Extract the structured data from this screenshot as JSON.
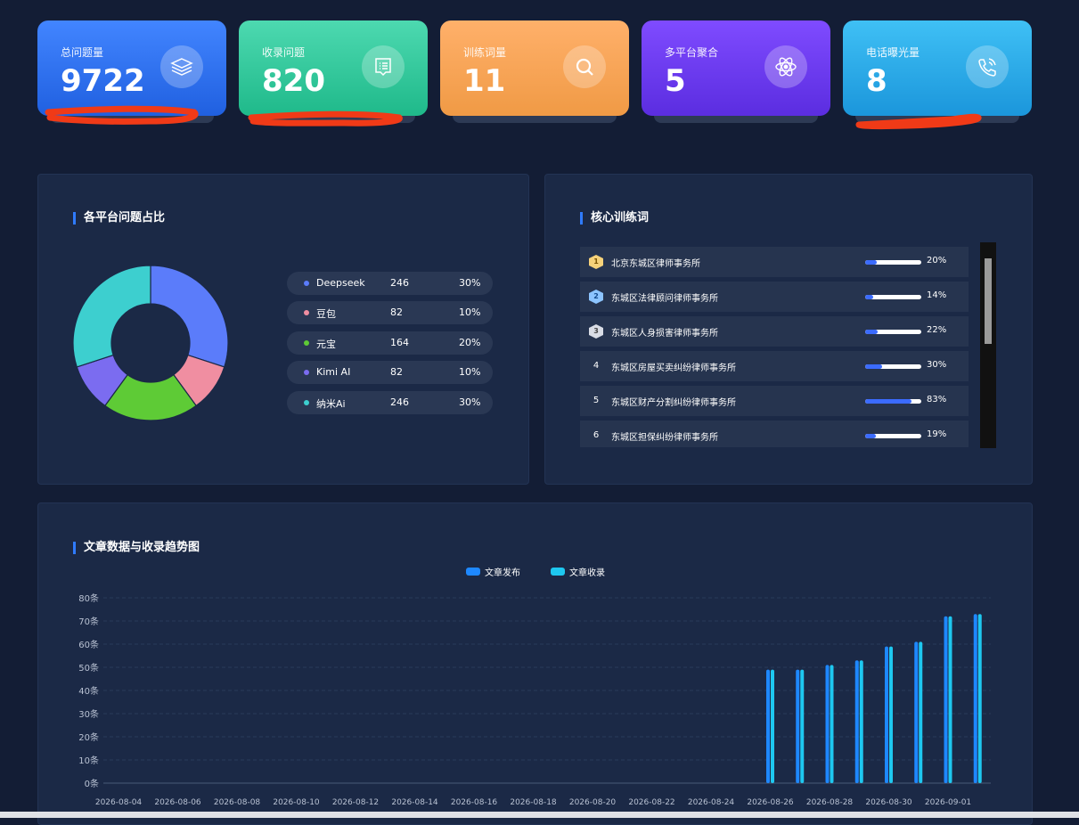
{
  "stats": [
    {
      "label": "总问题量",
      "value": "9722",
      "icon": "layers-icon",
      "from": "#4285ff",
      "to": "#2060e0"
    },
    {
      "label": "收录问题",
      "value": "820",
      "icon": "document-list-icon",
      "from": "#4dd9b0",
      "to": "#1fb98a"
    },
    {
      "label": "训练词量",
      "value": "11",
      "icon": "search-icon",
      "from": "#ffb06a",
      "to": "#f09a45"
    },
    {
      "label": "多平台聚合",
      "value": "5",
      "icon": "atom-icon",
      "from": "#7f4bff",
      "to": "#5b2de0"
    },
    {
      "label": "电话曝光量",
      "value": "8",
      "icon": "phone-call-icon",
      "from": "#3fc0f5",
      "to": "#1b96db"
    }
  ],
  "platform_panel": {
    "title": "各平台问题占比",
    "legend": [
      {
        "name": "Deepseek",
        "count": "246",
        "pct": "30%",
        "color": "#5b7cfa"
      },
      {
        "name": "豆包",
        "count": "82",
        "pct": "10%",
        "color": "#f08ea1"
      },
      {
        "name": "元宝",
        "count": "164",
        "pct": "20%",
        "color": "#5ecb36"
      },
      {
        "name": "Kimi AI",
        "count": "82",
        "pct": "10%",
        "color": "#7b6cf0"
      },
      {
        "name": "纳米Ai",
        "count": "246",
        "pct": "30%",
        "color": "#3dcfcf"
      }
    ]
  },
  "keywords_panel": {
    "title": "核心训练词",
    "items": [
      {
        "rank": "1",
        "name": "北京东城区律师事务所",
        "pct": "20%",
        "value": 0.2,
        "badge": "gold"
      },
      {
        "rank": "2",
        "name": "东城区法律顾问律师事务所",
        "pct": "14%",
        "value": 0.14,
        "badge": "blue"
      },
      {
        "rank": "3",
        "name": "东城区人身损害律师事务所",
        "pct": "22%",
        "value": 0.22,
        "badge": "silver"
      },
      {
        "rank": "4",
        "name": "东城区房屋买卖纠纷律师事务所",
        "pct": "30%",
        "value": 0.3,
        "badge": "none"
      },
      {
        "rank": "5",
        "name": "东城区财产分割纠纷律师事务所",
        "pct": "83%",
        "value": 0.83,
        "badge": "none"
      },
      {
        "rank": "6",
        "name": "东城区担保纠纷律师事务所",
        "pct": "19%",
        "value": 0.19,
        "badge": "none"
      }
    ]
  },
  "trend_panel": {
    "title": "文章数据与收录趋势图"
  },
  "chart_data": {
    "type": "bar",
    "x": [
      "2026-08-04",
      "2026-08-05",
      "2026-08-06",
      "2026-08-07",
      "2026-08-08",
      "2026-08-09",
      "2026-08-10",
      "2026-08-11",
      "2026-08-12",
      "2026-08-13",
      "2026-08-14",
      "2026-08-15",
      "2026-08-16",
      "2026-08-17",
      "2026-08-18",
      "2026-08-19",
      "2026-08-20",
      "2026-08-21",
      "2026-08-22",
      "2026-08-23",
      "2026-08-24",
      "2026-08-25",
      "2026-08-26",
      "2026-08-27",
      "2026-08-28",
      "2026-08-29",
      "2026-08-30",
      "2026-08-31",
      "2026-09-01",
      "2026-09-02"
    ],
    "xticks": [
      "2026-08-04",
      "2026-08-06",
      "2026-08-08",
      "2026-08-10",
      "2026-08-12",
      "2026-08-14",
      "2026-08-16",
      "2026-08-18",
      "2026-08-20",
      "2026-08-22",
      "2026-08-24",
      "2026-08-26",
      "2026-08-28",
      "2026-08-30",
      "2026-09-01"
    ],
    "series": [
      {
        "name": "文章发布",
        "color": "#1e88ff",
        "values": [
          0,
          0,
          0,
          0,
          0,
          0,
          0,
          0,
          0,
          0,
          0,
          0,
          0,
          0,
          0,
          0,
          0,
          0,
          0,
          0,
          0,
          0,
          49,
          49,
          51,
          53,
          59,
          61,
          72,
          73
        ]
      },
      {
        "name": "文章收录",
        "color": "#1ec8f0",
        "values": [
          0,
          0,
          0,
          0,
          0,
          0,
          0,
          0,
          0,
          0,
          0,
          0,
          0,
          0,
          0,
          0,
          0,
          0,
          0,
          0,
          0,
          0,
          49,
          49,
          51,
          53,
          59,
          61,
          72,
          73
        ]
      }
    ],
    "yticks": [
      "0条",
      "10条",
      "20条",
      "30条",
      "40条",
      "50条",
      "60条",
      "70条",
      "80条"
    ],
    "ylim": [
      0,
      80
    ],
    "grid": true,
    "legend": "top-center"
  },
  "donut_data": {
    "type": "pie",
    "categories": [
      "Deepseek",
      "豆包",
      "元宝",
      "Kimi AI",
      "纳米Ai"
    ],
    "values": [
      30,
      10,
      20,
      10,
      30
    ]
  }
}
